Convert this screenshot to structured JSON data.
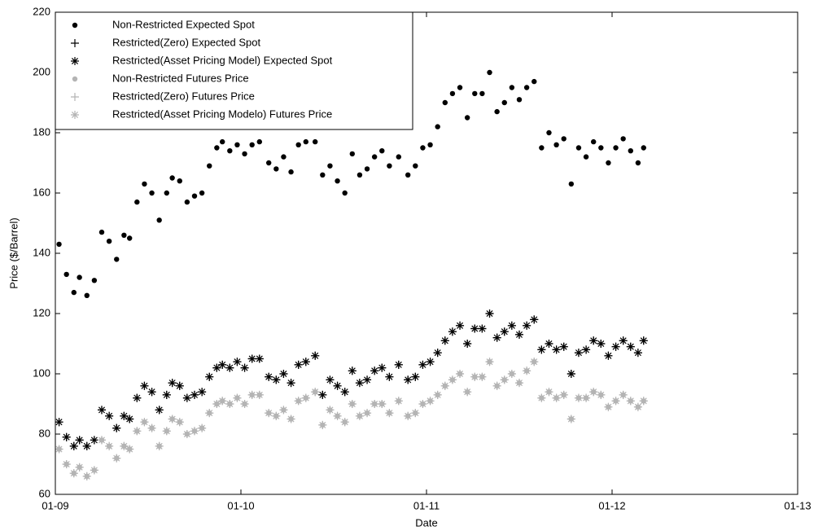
{
  "chart_data": {
    "type": "scatter",
    "xlabel": "Date",
    "ylabel": "Price ($/Barrel)",
    "xlim": [
      2009,
      2013
    ],
    "xticks": [
      {
        "value": 2009,
        "label": "01-09"
      },
      {
        "value": 2010,
        "label": "01-10"
      },
      {
        "value": 2011,
        "label": "01-11"
      },
      {
        "value": 2012,
        "label": "01-12"
      },
      {
        "value": 2013,
        "label": "01-13"
      }
    ],
    "ylim": [
      60,
      220
    ],
    "yticks": [
      60,
      80,
      100,
      120,
      140,
      160,
      180,
      200,
      220
    ],
    "grid": false,
    "legend": "upper left",
    "x": [
      2009.02,
      2009.06,
      2009.1,
      2009.13,
      2009.17,
      2009.21,
      2009.25,
      2009.29,
      2009.33,
      2009.37,
      2009.4,
      2009.44,
      2009.48,
      2009.52,
      2009.56,
      2009.6,
      2009.63,
      2009.67,
      2009.71,
      2009.75,
      2009.79,
      2009.83,
      2009.87,
      2009.9,
      2009.94,
      2009.98,
      2010.02,
      2010.06,
      2010.1,
      2010.15,
      2010.19,
      2010.23,
      2010.27,
      2010.31,
      2010.35,
      2010.4,
      2010.44,
      2010.48,
      2010.52,
      2010.56,
      2010.6,
      2010.64,
      2010.68,
      2010.72,
      2010.76,
      2010.8,
      2010.85,
      2010.9,
      2010.94,
      2010.98,
      2011.02,
      2011.06,
      2011.1,
      2011.14,
      2011.18,
      2011.22,
      2011.26,
      2011.3,
      2011.34,
      2011.38,
      2011.42,
      2011.46,
      2011.5,
      2011.54,
      2011.58,
      2011.62,
      2011.66,
      2011.7,
      2011.74,
      2011.78,
      2011.82,
      2011.86,
      2011.9,
      2011.94,
      2011.98,
      2012.02,
      2012.06,
      2012.1,
      2012.14,
      2012.17
    ],
    "series": [
      {
        "name": "Non-Restricted Expected Spot",
        "color": "#000000",
        "marker": "dot",
        "values": [
          143,
          133,
          127,
          132,
          126,
          131,
          147,
          144,
          138,
          146,
          145,
          157,
          163,
          160,
          151,
          160,
          165,
          164,
          157,
          159,
          160,
          169,
          175,
          177,
          174,
          176,
          173,
          176,
          177,
          170,
          168,
          172,
          167,
          176,
          177,
          177,
          166,
          169,
          164,
          160,
          173,
          166,
          168,
          172,
          174,
          169,
          172,
          166,
          169,
          175,
          176,
          182,
          190,
          193,
          195,
          185,
          193,
          193,
          200,
          187,
          190,
          195,
          191,
          195,
          197,
          175,
          180,
          176,
          178,
          163,
          175,
          172,
          177,
          175,
          170,
          175,
          178,
          174,
          170,
          175
        ]
      },
      {
        "name": "Restricted(Zero) Expected Spot",
        "color": "#000000",
        "marker": "plus",
        "values": [
          84,
          79,
          76,
          78,
          76,
          78,
          88,
          86,
          82,
          86,
          85,
          92,
          96,
          94,
          88,
          93,
          97,
          96,
          92,
          93,
          94,
          99,
          102,
          103,
          102,
          104,
          102,
          105,
          105,
          99,
          98,
          100,
          97,
          103,
          104,
          106,
          93,
          98,
          96,
          94,
          101,
          97,
          98,
          101,
          102,
          99,
          103,
          98,
          99,
          103,
          104,
          107,
          111,
          114,
          116,
          110,
          115,
          115,
          120,
          112,
          114,
          116,
          113,
          116,
          118,
          108,
          110,
          108,
          109,
          100,
          107,
          108,
          111,
          110,
          106,
          109,
          111,
          109,
          107,
          111
        ]
      },
      {
        "name": "Restricted(Asset Pricing Model) Expected Spot",
        "color": "#000000",
        "marker": "asterisk",
        "values": [
          84,
          79,
          76,
          78,
          76,
          78,
          88,
          86,
          82,
          86,
          85,
          92,
          96,
          94,
          88,
          93,
          97,
          96,
          92,
          93,
          94,
          99,
          102,
          103,
          102,
          104,
          102,
          105,
          105,
          99,
          98,
          100,
          97,
          103,
          104,
          106,
          93,
          98,
          96,
          94,
          101,
          97,
          98,
          101,
          102,
          99,
          103,
          98,
          99,
          103,
          104,
          107,
          111,
          114,
          116,
          110,
          115,
          115,
          120,
          112,
          114,
          116,
          113,
          116,
          118,
          108,
          110,
          108,
          109,
          100,
          107,
          108,
          111,
          110,
          106,
          109,
          111,
          109,
          107,
          111
        ]
      },
      {
        "name": "Non-Restricted Futures Price",
        "color": "#b4b4b4",
        "marker": "dot",
        "values": [
          75,
          70,
          67,
          69,
          66,
          68,
          78,
          76,
          72,
          76,
          75,
          81,
          84,
          82,
          76,
          81,
          85,
          84,
          80,
          81,
          82,
          87,
          90,
          91,
          90,
          92,
          90,
          93,
          93,
          87,
          86,
          88,
          85,
          91,
          92,
          94,
          83,
          88,
          86,
          84,
          90,
          86,
          87,
          90,
          90,
          87,
          91,
          86,
          87,
          90,
          91,
          93,
          96,
          98,
          100,
          94,
          99,
          99,
          104,
          96,
          98,
          100,
          97,
          101,
          104,
          92,
          94,
          92,
          93,
          85,
          92,
          92,
          94,
          93,
          89,
          91,
          93,
          91,
          89,
          91
        ]
      },
      {
        "name": "Restricted(Zero) Futures Price",
        "color": "#b4b4b4",
        "marker": "plus",
        "values": [
          75,
          70,
          67,
          69,
          66,
          68,
          78,
          76,
          72,
          76,
          75,
          81,
          84,
          82,
          76,
          81,
          85,
          84,
          80,
          81,
          82,
          87,
          90,
          91,
          90,
          92,
          90,
          93,
          93,
          87,
          86,
          88,
          85,
          91,
          92,
          94,
          83,
          88,
          86,
          84,
          90,
          86,
          87,
          90,
          90,
          87,
          91,
          86,
          87,
          90,
          91,
          93,
          96,
          98,
          100,
          94,
          99,
          99,
          104,
          96,
          98,
          100,
          97,
          101,
          104,
          92,
          94,
          92,
          93,
          85,
          92,
          92,
          94,
          93,
          89,
          91,
          93,
          91,
          89,
          91
        ]
      },
      {
        "name": "Restricted(Asset Pricing Modelo) Futures Price",
        "color": "#b4b4b4",
        "marker": "asterisk",
        "values": [
          75,
          70,
          67,
          69,
          66,
          68,
          78,
          76,
          72,
          76,
          75,
          81,
          84,
          82,
          76,
          81,
          85,
          84,
          80,
          81,
          82,
          87,
          90,
          91,
          90,
          92,
          90,
          93,
          93,
          87,
          86,
          88,
          85,
          91,
          92,
          94,
          83,
          88,
          86,
          84,
          90,
          86,
          87,
          90,
          90,
          87,
          91,
          86,
          87,
          90,
          91,
          93,
          96,
          98,
          100,
          94,
          99,
          99,
          104,
          96,
          98,
          100,
          97,
          101,
          104,
          92,
          94,
          92,
          93,
          85,
          92,
          92,
          94,
          93,
          89,
          91,
          93,
          91,
          89,
          91
        ]
      }
    ]
  }
}
